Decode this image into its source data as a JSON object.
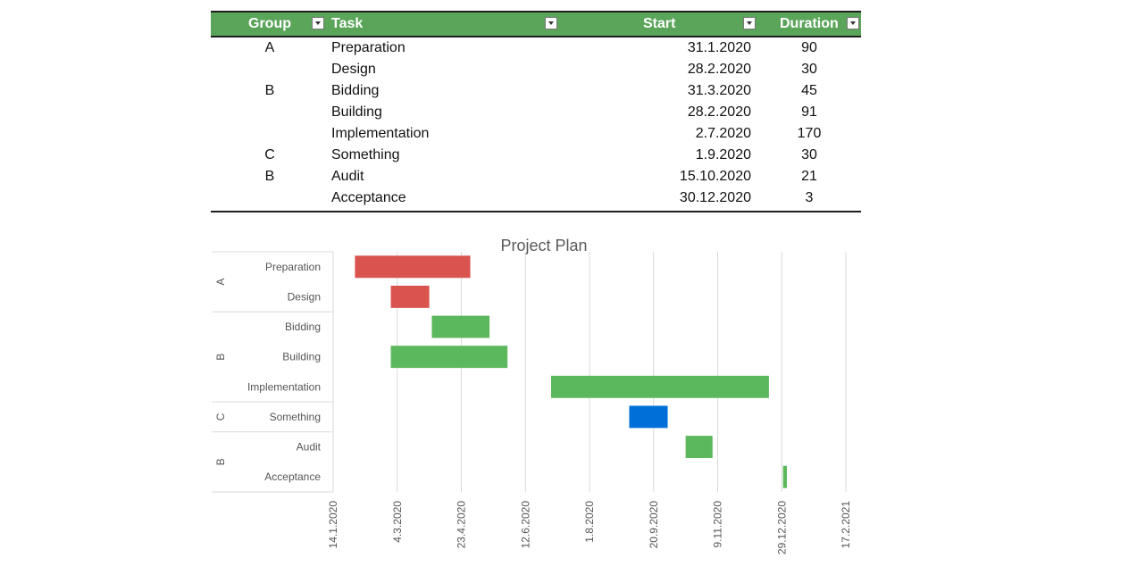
{
  "table": {
    "headers": {
      "group": "Group",
      "task": "Task",
      "start": "Start",
      "duration": "Duration"
    },
    "rows": [
      {
        "group": "A",
        "task": "Preparation",
        "start": "31.1.2020",
        "duration": "90"
      },
      {
        "group": "",
        "task": "Design",
        "start": "28.2.2020",
        "duration": "30"
      },
      {
        "group": "B",
        "task": "Bidding",
        "start": "31.3.2020",
        "duration": "45"
      },
      {
        "group": "",
        "task": "Building",
        "start": "28.2.2020",
        "duration": "91"
      },
      {
        "group": "",
        "task": "Implementation",
        "start": "2.7.2020",
        "duration": "170"
      },
      {
        "group": "C",
        "task": "Something",
        "start": "1.9.2020",
        "duration": "30"
      },
      {
        "group": "B",
        "task": "Audit",
        "start": "15.10.2020",
        "duration": "21"
      },
      {
        "group": "",
        "task": "Acceptance",
        "start": "30.12.2020",
        "duration": "3"
      }
    ]
  },
  "chart_data": {
    "type": "bar",
    "orientation": "horizontal-gantt",
    "title": "Project Plan",
    "groups": [
      {
        "label": "A",
        "tasks": [
          "Preparation",
          "Design"
        ]
      },
      {
        "label": "B",
        "tasks": [
          "Bidding",
          "Building",
          "Implementation"
        ]
      },
      {
        "label": "C",
        "tasks": [
          "Something"
        ]
      },
      {
        "label": "B",
        "tasks": [
          "Audit",
          "Acceptance"
        ]
      }
    ],
    "bars": [
      {
        "task": "Preparation",
        "start": "2020-01-31",
        "duration_days": 90,
        "color": "#d9534f"
      },
      {
        "task": "Design",
        "start": "2020-02-28",
        "duration_days": 30,
        "color": "#d9534f"
      },
      {
        "task": "Bidding",
        "start": "2020-03-31",
        "duration_days": 45,
        "color": "#5cb85c"
      },
      {
        "task": "Building",
        "start": "2020-02-28",
        "duration_days": 91,
        "color": "#5cb85c"
      },
      {
        "task": "Implementation",
        "start": "2020-07-02",
        "duration_days": 170,
        "color": "#5cb85c"
      },
      {
        "task": "Something",
        "start": "2020-09-01",
        "duration_days": 30,
        "color": "#0070d8"
      },
      {
        "task": "Audit",
        "start": "2020-10-15",
        "duration_days": 21,
        "color": "#5cb85c"
      },
      {
        "task": "Acceptance",
        "start": "2020-12-30",
        "duration_days": 3,
        "color": "#5cb85c"
      }
    ],
    "x_ticks": [
      "14.1.2020",
      "4.3.2020",
      "23.4.2020",
      "12.6.2020",
      "1.8.2020",
      "20.9.2020",
      "9.11.2020",
      "29.12.2020",
      "17.2.2021"
    ],
    "x_tick_dates": [
      "2020-01-14",
      "2020-03-04",
      "2020-04-23",
      "2020-06-12",
      "2020-08-01",
      "2020-09-20",
      "2020-11-09",
      "2020-12-29",
      "2021-02-17"
    ],
    "xlim": [
      "2020-01-14",
      "2021-02-17"
    ],
    "grid": true,
    "legend": "none"
  }
}
